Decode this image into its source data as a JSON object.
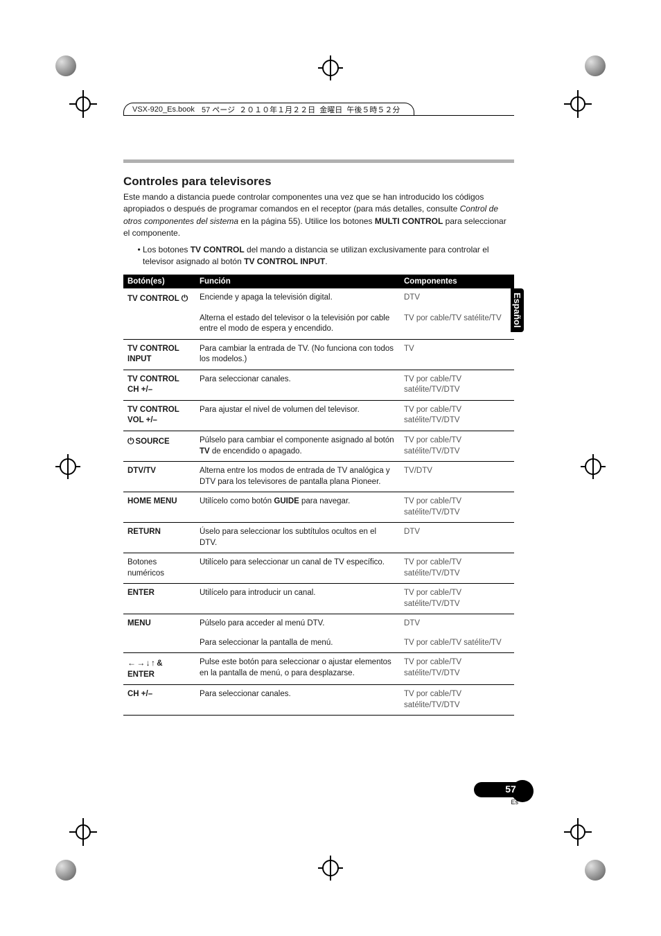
{
  "header": {
    "filename": "VSX-920_Es.book",
    "rest": "  57 ページ  ２０１０年１月２２日  金曜日  午後５時５２分"
  },
  "section": {
    "title": "Controles para televisores",
    "intro_pre": "Este mando a distancia puede controlar componentes una vez que se han introducido los códigos apropiados o después de programar comandos en el receptor (para más detalles, consulte ",
    "intro_italic": "Control de otros componentes del sistema",
    "intro_mid": " en la página 55). Utilice los botones ",
    "intro_bold": "MULTI CONTROL",
    "intro_post": " para seleccionar el componente.",
    "bullet_pre": "Los botones ",
    "bullet_b1": "TV CONTROL",
    "bullet_mid": " del mando a distancia se utilizan exclusivamente para controlar el televisor asignado al botón ",
    "bullet_b2": "TV CONTROL INPUT",
    "bullet_post": "."
  },
  "table": {
    "headers": {
      "c1": "Botón(es)",
      "c2": "Función",
      "c3": "Componentes"
    },
    "rows": [
      {
        "sep": false,
        "btn": "TV CONTROL ",
        "btn_power": true,
        "fn": "Enciende y apaga la televisión digital.",
        "comp": "DTV"
      },
      {
        "sep": false,
        "btn": "",
        "fn": "Alterna el estado del televisor o la televisión por cable entre el modo de espera y encendido.",
        "comp": "TV por cable/TV satélite/TV"
      },
      {
        "sep": true,
        "btn": "TV CONTROL INPUT",
        "fn": "Para cambiar la entrada de TV. (No funciona con todos los modelos.)",
        "comp": "TV"
      },
      {
        "sep": true,
        "btn": "TV CONTROL CH +/–",
        "fn": "Para seleccionar canales.",
        "comp": "TV por cable/TV satélite/TV/DTV"
      },
      {
        "sep": true,
        "btn": "TV CONTROL VOL +/–",
        "fn": "Para ajustar el nivel de volumen del televisor.",
        "comp": "TV por cable/TV satélite/TV/DTV"
      },
      {
        "sep": true,
        "btn_power_prefix": true,
        "btn": "SOURCE",
        "fn_pre": "Púlselo para cambiar el componente asignado al botón ",
        "fn_bold": "TV",
        "fn_post": " de encendido o apagado.",
        "comp": "TV por cable/TV satélite/TV/DTV"
      },
      {
        "sep": true,
        "btn": "DTV/TV",
        "fn": "Alterna entre los modos de entrada de TV analógica y DTV para los televisores de pantalla plana Pioneer.",
        "comp": "TV/DTV"
      },
      {
        "sep": true,
        "btn": "HOME MENU",
        "fn_pre": "Utilícelo como botón ",
        "fn_bold": "GUIDE",
        "fn_post": " para navegar.",
        "comp": "TV por cable/TV satélite/TV/DTV"
      },
      {
        "sep": true,
        "btn": "RETURN",
        "fn": "Úselo para seleccionar los subtítulos ocultos en el DTV.",
        "comp": "DTV"
      },
      {
        "sep": true,
        "btn_plain": true,
        "btn": "Botones numéricos",
        "fn": "Utilícelo para seleccionar un canal de TV específico.",
        "comp": "TV por cable/TV satélite/TV/DTV"
      },
      {
        "sep": true,
        "btn": "ENTER",
        "fn": "Utilícelo para introducir un canal.",
        "comp": "TV por cable/TV satélite/TV/DTV"
      },
      {
        "sep": true,
        "btn": "MENU",
        "fn": "Púlselo para acceder al menú DTV.",
        "comp": "DTV"
      },
      {
        "sep": false,
        "btn": "",
        "fn": "Para seleccionar la pantalla de menú.",
        "comp": "TV por cable/TV satélite/TV"
      },
      {
        "sep": true,
        "btn_arrows": true,
        "btn": " & ENTER",
        "fn": "Pulse este botón para seleccionar o ajustar elementos en la pantalla de menú, o para desplazarse.",
        "comp": "TV por cable/TV satélite/TV/DTV"
      },
      {
        "sep": true,
        "btn": "CH +/–",
        "fn": "Para seleccionar canales.",
        "comp": "TV por cable/TV satélite/TV/DTV"
      }
    ],
    "bottom_sep": true
  },
  "side_tab": "Español",
  "page": {
    "num": "57",
    "lang": "Es"
  }
}
